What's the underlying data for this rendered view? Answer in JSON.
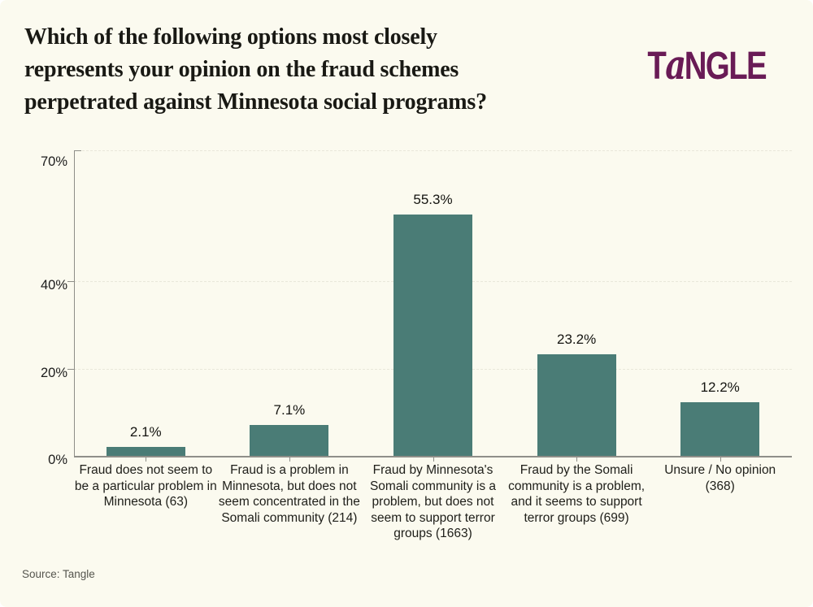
{
  "page": {
    "background": "#fbfaef"
  },
  "logo": {
    "t": "T",
    "a": "a",
    "rest": "NGLE",
    "color": "#691b56"
  },
  "chart_data": {
    "type": "bar",
    "title": "Which of the following options most closely represents your opinion on the fraud schemes perpetrated against Minnesota social programs?",
    "title_lines": [
      "Which of the following options most closely",
      "represents your opinion on the fraud schemes",
      "perpetrated against Minnesota social programs?"
    ],
    "categories": [
      "Fraud does not seem to be a particular problem in Minnesota (63)",
      "Fraud is a problem in Minnesota, but does not seem concentrated in the Somali community (214)",
      "Fraud by Minnesota's Somali community is a problem, but does not seem to support terror groups (1663)",
      "Fraud by the Somali community is a problem, and it seems to support terror groups (699)",
      "Unsure / No opinion (368)"
    ],
    "values": [
      2.1,
      7.1,
      55.3,
      23.2,
      12.2
    ],
    "value_labels": [
      "2.1%",
      "7.1%",
      "55.3%",
      "23.2%",
      "12.2%"
    ],
    "response_counts": [
      63,
      214,
      1663,
      699,
      368
    ],
    "xlabel": "",
    "ylabel": "",
    "ylim": [
      0,
      70
    ],
    "yticks": [
      0,
      20,
      40,
      70
    ],
    "ytick_labels": [
      "0%",
      "20%",
      "40%",
      "70%"
    ],
    "grid": "horizontal-dashed",
    "legend": "none",
    "bar_color": "#4a7c76",
    "source": "Source: Tangle"
  },
  "colors": {
    "background": "#fbfaef",
    "bar": "#4a7c76",
    "axis": "#8e8e88",
    "grid": "#e9e7da",
    "title_text": "#191914",
    "label_text": "#20201b",
    "source_text": "#55554e",
    "logo": "#691b56"
  }
}
